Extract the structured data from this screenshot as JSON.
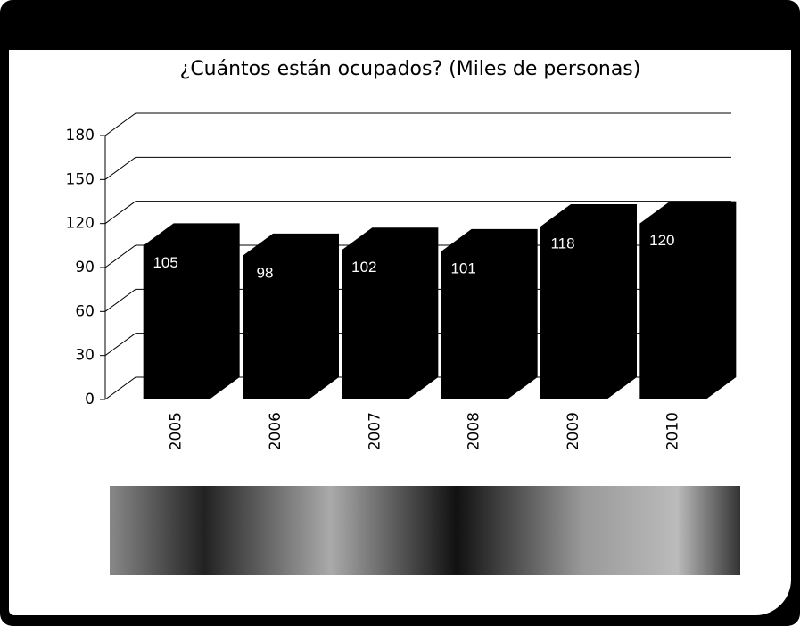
{
  "chart_data": {
    "type": "bar",
    "title": "¿Cuántos están ocupados? (Miles de personas)",
    "categories": [
      "2005",
      "2006",
      "2007",
      "2008",
      "2009",
      "2010"
    ],
    "values": [
      105,
      98,
      102,
      101,
      118,
      120
    ],
    "color": "#000000",
    "ylim": [
      0,
      180
    ],
    "yticks": [
      0,
      30,
      60,
      90,
      120,
      150,
      180
    ],
    "grid": true
  }
}
